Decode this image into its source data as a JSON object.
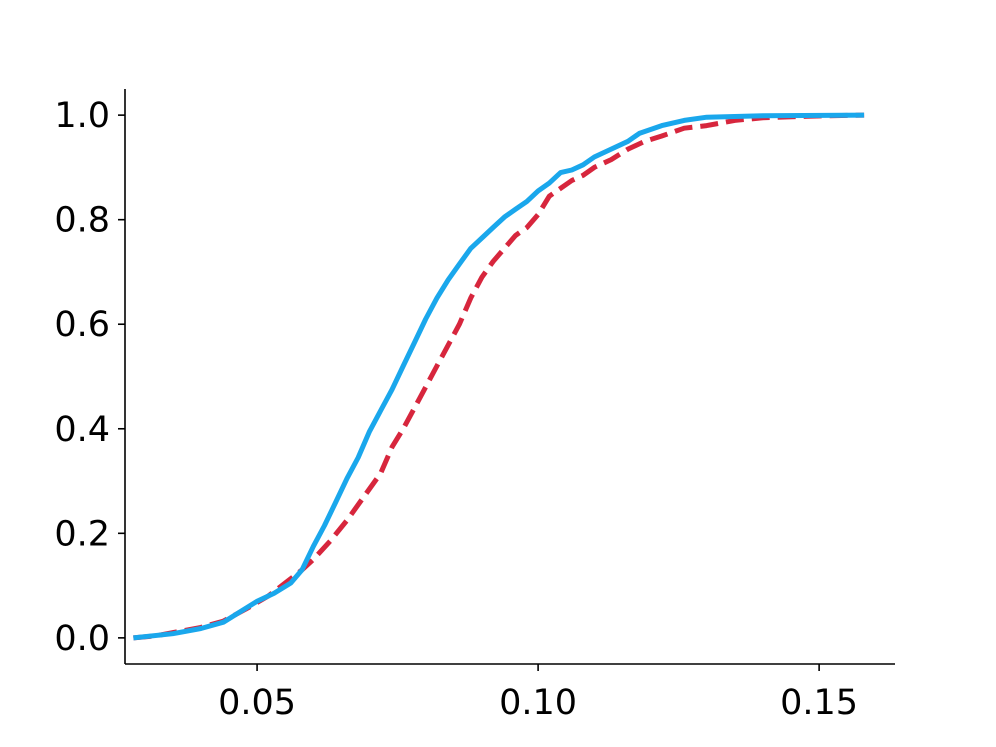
{
  "chart_data": {
    "type": "line",
    "title": "",
    "xlabel": "",
    "ylabel": "",
    "xlim": [
      0.0265,
      0.1635
    ],
    "ylim": [
      -0.05,
      1.05
    ],
    "xticks": [
      {
        "value": 0.05,
        "label": "0.05"
      },
      {
        "value": 0.1,
        "label": "0.10"
      },
      {
        "value": 0.15,
        "label": "0.15"
      }
    ],
    "yticks": [
      {
        "value": 0.0,
        "label": "0.0"
      },
      {
        "value": 0.2,
        "label": "0.2"
      },
      {
        "value": 0.4,
        "label": "0.4"
      },
      {
        "value": 0.6,
        "label": "0.6"
      },
      {
        "value": 0.8,
        "label": "0.8"
      },
      {
        "value": 1.0,
        "label": "1.0"
      }
    ],
    "grid": false,
    "legend": "none",
    "series": [
      {
        "color": "#1aa7ec",
        "style": "solid",
        "points": [
          [
            0.028,
            0.0
          ],
          [
            0.035,
            0.008
          ],
          [
            0.04,
            0.018
          ],
          [
            0.044,
            0.03
          ],
          [
            0.047,
            0.05
          ],
          [
            0.05,
            0.07
          ],
          [
            0.053,
            0.085
          ],
          [
            0.056,
            0.105
          ],
          [
            0.058,
            0.13
          ],
          [
            0.06,
            0.175
          ],
          [
            0.062,
            0.215
          ],
          [
            0.064,
            0.26
          ],
          [
            0.066,
            0.305
          ],
          [
            0.068,
            0.345
          ],
          [
            0.07,
            0.395
          ],
          [
            0.072,
            0.435
          ],
          [
            0.074,
            0.475
          ],
          [
            0.076,
            0.52
          ],
          [
            0.078,
            0.565
          ],
          [
            0.08,
            0.61
          ],
          [
            0.082,
            0.65
          ],
          [
            0.084,
            0.685
          ],
          [
            0.086,
            0.715
          ],
          [
            0.088,
            0.745
          ],
          [
            0.09,
            0.765
          ],
          [
            0.092,
            0.785
          ],
          [
            0.094,
            0.805
          ],
          [
            0.096,
            0.82
          ],
          [
            0.098,
            0.835
          ],
          [
            0.1,
            0.855
          ],
          [
            0.102,
            0.87
          ],
          [
            0.104,
            0.89
          ],
          [
            0.106,
            0.895
          ],
          [
            0.108,
            0.905
          ],
          [
            0.11,
            0.92
          ],
          [
            0.113,
            0.935
          ],
          [
            0.116,
            0.95
          ],
          [
            0.118,
            0.965
          ],
          [
            0.122,
            0.98
          ],
          [
            0.126,
            0.99
          ],
          [
            0.13,
            0.996
          ],
          [
            0.14,
            0.999
          ],
          [
            0.158,
            1.0
          ]
        ]
      },
      {
        "color": "#d7263d",
        "style": "dashed",
        "points": [
          [
            0.028,
            0.0
          ],
          [
            0.032,
            0.004
          ],
          [
            0.036,
            0.012
          ],
          [
            0.04,
            0.02
          ],
          [
            0.044,
            0.032
          ],
          [
            0.048,
            0.055
          ],
          [
            0.052,
            0.08
          ],
          [
            0.055,
            0.105
          ],
          [
            0.058,
            0.13
          ],
          [
            0.06,
            0.15
          ],
          [
            0.063,
            0.185
          ],
          [
            0.066,
            0.225
          ],
          [
            0.069,
            0.27
          ],
          [
            0.072,
            0.315
          ],
          [
            0.074,
            0.365
          ],
          [
            0.076,
            0.4
          ],
          [
            0.078,
            0.44
          ],
          [
            0.08,
            0.48
          ],
          [
            0.082,
            0.52
          ],
          [
            0.084,
            0.56
          ],
          [
            0.086,
            0.6
          ],
          [
            0.088,
            0.65
          ],
          [
            0.09,
            0.69
          ],
          [
            0.092,
            0.72
          ],
          [
            0.094,
            0.745
          ],
          [
            0.096,
            0.77
          ],
          [
            0.098,
            0.785
          ],
          [
            0.1,
            0.81
          ],
          [
            0.102,
            0.845
          ],
          [
            0.104,
            0.86
          ],
          [
            0.106,
            0.875
          ],
          [
            0.108,
            0.885
          ],
          [
            0.11,
            0.9
          ],
          [
            0.113,
            0.915
          ],
          [
            0.116,
            0.935
          ],
          [
            0.119,
            0.95
          ],
          [
            0.122,
            0.96
          ],
          [
            0.126,
            0.975
          ],
          [
            0.13,
            0.98
          ],
          [
            0.135,
            0.99
          ],
          [
            0.14,
            0.995
          ],
          [
            0.148,
            0.998
          ],
          [
            0.158,
            1.0
          ]
        ]
      }
    ]
  }
}
